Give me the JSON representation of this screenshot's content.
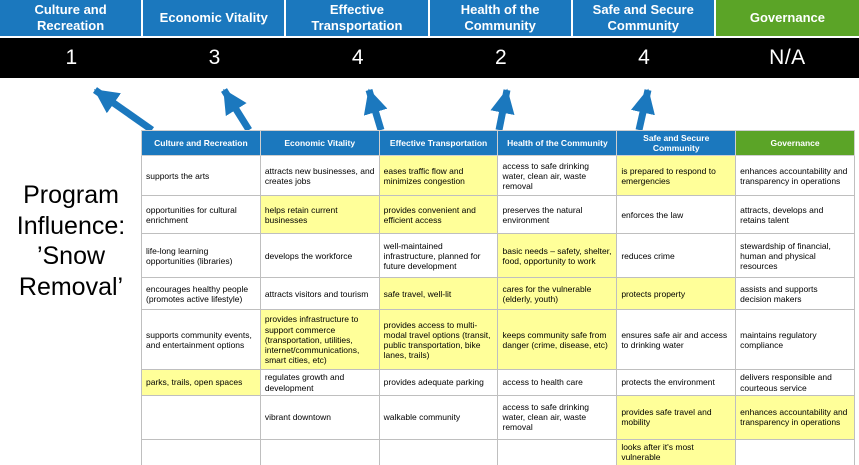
{
  "title": "Program Influence: ’Snow Removal’",
  "colors": {
    "pillar_blue": "#1B78BE",
    "governance_green": "#5BA427",
    "score_band_black": "#000000",
    "highlight_yellow": "#FFFF99"
  },
  "scoreboard": {
    "columns": [
      {
        "label": "Culture and Recreation",
        "score": "1"
      },
      {
        "label": "Economic Vitality",
        "score": "3"
      },
      {
        "label": "Effective Transportation",
        "score": "4"
      },
      {
        "label": "Health of the Community",
        "score": "2"
      },
      {
        "label": "Safe and Secure Community",
        "score": "4"
      },
      {
        "label": "Governance",
        "score": "N/A"
      }
    ]
  },
  "matrix": {
    "headers": [
      "Culture and Recreation",
      "Economic Vitality",
      "Effective Transportation",
      "Health of the Community",
      "Safe and Secure Community",
      "Governance"
    ],
    "rows": [
      [
        {
          "text": "supports the arts",
          "highlight": false
        },
        {
          "text": "attracts new businesses, and creates jobs",
          "highlight": false
        },
        {
          "text": "eases traffic flow and minimizes congestion",
          "highlight": true
        },
        {
          "text": "access to safe drinking water, clean air, waste removal",
          "highlight": false
        },
        {
          "text": "is prepared to respond to emergencies",
          "highlight": true
        },
        {
          "text": "enhances accountability and transparency in operations",
          "highlight": false
        }
      ],
      [
        {
          "text": "opportunities for cultural enrichment",
          "highlight": false
        },
        {
          "text": "helps retain current businesses",
          "highlight": true
        },
        {
          "text": "provides convenient and efficient access",
          "highlight": true
        },
        {
          "text": "preserves the natural environment",
          "highlight": false
        },
        {
          "text": "enforces the law",
          "highlight": false
        },
        {
          "text": "attracts, develops and retains talent",
          "highlight": false
        }
      ],
      [
        {
          "text": "life-long learning opportunities (libraries)",
          "highlight": false
        },
        {
          "text": "develops the workforce",
          "highlight": false
        },
        {
          "text": "well-maintained infrastructure, planned for future development",
          "highlight": false
        },
        {
          "text": "basic needs – safety, shelter, food, opportunity to work",
          "highlight": true
        },
        {
          "text": "reduces crime",
          "highlight": false
        },
        {
          "text": "stewardship of financial, human and physical resources",
          "highlight": false
        }
      ],
      [
        {
          "text": "encourages healthy people (promotes active lifestyle)",
          "highlight": false
        },
        {
          "text": "attracts visitors and tourism",
          "highlight": false
        },
        {
          "text": "safe travel, well-lit",
          "highlight": true
        },
        {
          "text": "cares for the vulnerable (elderly, youth)",
          "highlight": true
        },
        {
          "text": "protects property",
          "highlight": true
        },
        {
          "text": "assists and supports decision makers",
          "highlight": false
        }
      ],
      [
        {
          "text": "supports community events, and entertainment options",
          "highlight": false
        },
        {
          "text": "provides infrastructure to support commerce (transportation, utilities, internet/communications, smart cities, etc)",
          "highlight": true
        },
        {
          "text": "provides access to multi-modal travel options (transit, public transportation, bike lanes, trails)",
          "highlight": true
        },
        {
          "text": "keeps community safe from danger (crime, disease, etc)",
          "highlight": true
        },
        {
          "text": "ensures safe air and access to drinking water",
          "highlight": false
        },
        {
          "text": "maintains regulatory compliance",
          "highlight": false
        }
      ],
      [
        {
          "text": "parks, trails, open spaces",
          "highlight": true
        },
        {
          "text": "regulates growth and development",
          "highlight": false
        },
        {
          "text": "provides adequate parking",
          "highlight": false
        },
        {
          "text": "access to health care",
          "highlight": false
        },
        {
          "text": "protects the environment",
          "highlight": false
        },
        {
          "text": "delivers responsible and courteous service",
          "highlight": false
        }
      ],
      [
        {
          "text": "",
          "highlight": false
        },
        {
          "text": "vibrant downtown",
          "highlight": false
        },
        {
          "text": "walkable community",
          "highlight": false
        },
        {
          "text": "access to safe drinking water, clean air, waste removal",
          "highlight": false
        },
        {
          "text": "provides safe travel and mobility",
          "highlight": true
        },
        {
          "text": "enhances accountability and transparency in operations",
          "highlight": true
        }
      ],
      [
        {
          "text": "",
          "highlight": false
        },
        {
          "text": "",
          "highlight": false
        },
        {
          "text": "",
          "highlight": false
        },
        {
          "text": "",
          "highlight": false
        },
        {
          "text": "looks after it's most vulnerable",
          "highlight": true
        },
        {
          "text": "",
          "highlight": false
        }
      ]
    ]
  }
}
